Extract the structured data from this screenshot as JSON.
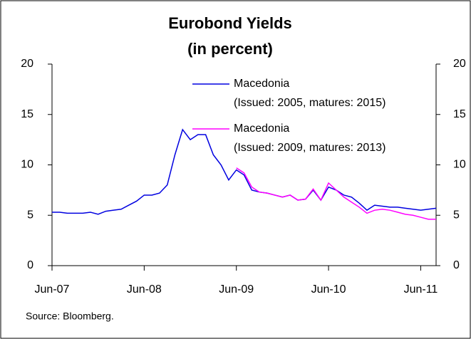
{
  "chart_data": {
    "type": "line",
    "title": "Eurobond Yields",
    "subtitle": "(in percent)",
    "source": "Source: Bloomberg.",
    "x": [
      "2007-06",
      "2007-07",
      "2007-08",
      "2007-09",
      "2007-10",
      "2007-11",
      "2007-12",
      "2008-01",
      "2008-02",
      "2008-03",
      "2008-04",
      "2008-05",
      "2008-06",
      "2008-07",
      "2008-08",
      "2008-09",
      "2008-10",
      "2008-11",
      "2008-12",
      "2009-01",
      "2009-02",
      "2009-03",
      "2009-04",
      "2009-05",
      "2009-06",
      "2009-07",
      "2009-08",
      "2009-09",
      "2009-10",
      "2009-11",
      "2009-12",
      "2010-01",
      "2010-02",
      "2010-03",
      "2010-04",
      "2010-05",
      "2010-06",
      "2010-07",
      "2010-08",
      "2010-09",
      "2010-10",
      "2010-11",
      "2010-12",
      "2011-01",
      "2011-02",
      "2011-03",
      "2011-04",
      "2011-05",
      "2011-06",
      "2011-07",
      "2011-08"
    ],
    "series": [
      {
        "name": "Macedonia",
        "description": "(Issued: 2005, matures: 2015)",
        "color": "#0000e0",
        "values": [
          5.3,
          5.3,
          5.2,
          5.2,
          5.2,
          5.3,
          5.1,
          5.4,
          5.5,
          5.6,
          6.0,
          6.4,
          7.0,
          7.0,
          7.2,
          8.0,
          11.0,
          13.5,
          12.5,
          13.0,
          13.0,
          11.0,
          10.0,
          8.5,
          9.5,
          9.0,
          7.5,
          7.3,
          7.2,
          7.0,
          6.8,
          7.0,
          6.5,
          6.6,
          7.5,
          6.5,
          7.8,
          7.5,
          7.0,
          6.8,
          6.2,
          5.5,
          6.0,
          5.9,
          5.8,
          5.8,
          5.7,
          5.6,
          5.5,
          5.6,
          5.7
        ]
      },
      {
        "name": "Macedonia",
        "description": "(Issued: 2009, matures: 2013)",
        "color": "#ff00ff",
        "values": [
          null,
          null,
          null,
          null,
          null,
          null,
          null,
          null,
          null,
          null,
          null,
          null,
          null,
          null,
          null,
          null,
          null,
          null,
          null,
          null,
          null,
          null,
          null,
          null,
          9.7,
          9.2,
          7.8,
          7.3,
          7.2,
          7.0,
          6.8,
          7.0,
          6.5,
          6.6,
          7.6,
          6.5,
          8.2,
          7.5,
          6.8,
          6.3,
          5.8,
          5.2,
          5.5,
          5.6,
          5.5,
          5.3,
          5.1,
          5.0,
          4.8,
          4.6,
          4.6
        ]
      }
    ],
    "xlim": [
      "2007-06",
      "2011-08"
    ],
    "xticks": [
      {
        "value": "2007-06",
        "label": "Jun-07"
      },
      {
        "value": "2008-06",
        "label": "Jun-08"
      },
      {
        "value": "2009-06",
        "label": "Jun-09"
      },
      {
        "value": "2010-06",
        "label": "Jun-10"
      },
      {
        "value": "2011-06",
        "label": "Jun-11"
      }
    ],
    "ylim": [
      0,
      20
    ],
    "yticks": [
      0,
      5,
      10,
      15,
      20
    ],
    "y2lim": [
      0,
      20
    ],
    "y2ticks": [
      0,
      5,
      10,
      15,
      20
    ],
    "grid": false
  }
}
